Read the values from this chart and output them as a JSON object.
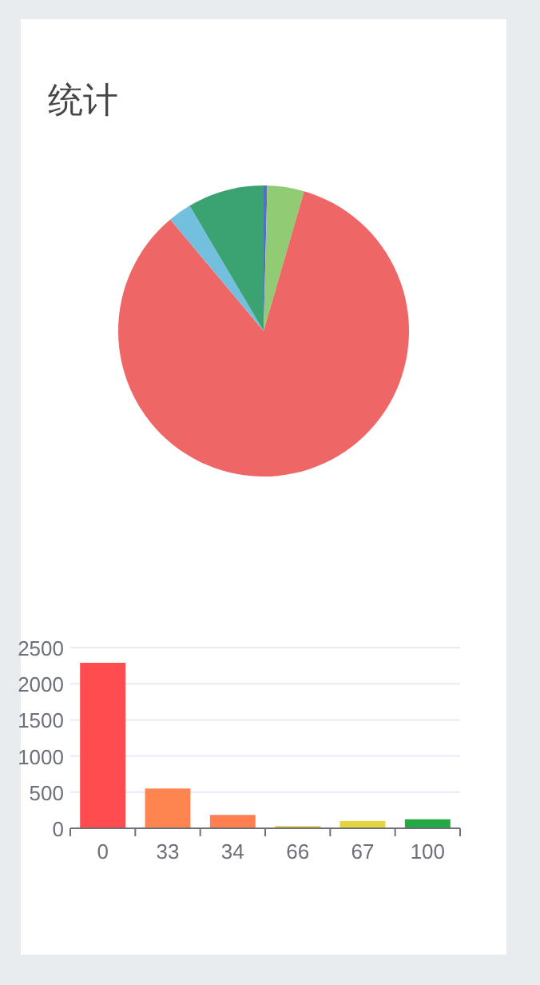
{
  "chart_data": [
    {
      "type": "pie",
      "title": "统计",
      "categories": [
        null,
        null,
        null,
        null,
        null
      ],
      "values": [
        0.4,
        4.1,
        84.4,
        2.6,
        8.5
      ],
      "colors": [
        "#5470c6",
        "#91cc75",
        "#ee6666",
        "#73c0de",
        "#3ba272"
      ]
    },
    {
      "type": "bar",
      "categories": [
        "0",
        "33",
        "34",
        "66",
        "67",
        "100"
      ],
      "values": [
        2290,
        550,
        185,
        30,
        100,
        125
      ],
      "colors": [
        "#ff4d4f",
        "#ff8550",
        "#ff7f50",
        "#d9c24a",
        "#e6d43c",
        "#23a843"
      ],
      "ylim": [
        0,
        2500
      ],
      "yticks": [
        0,
        500,
        1000,
        1500,
        2000,
        2500
      ],
      "grid": "y"
    }
  ]
}
